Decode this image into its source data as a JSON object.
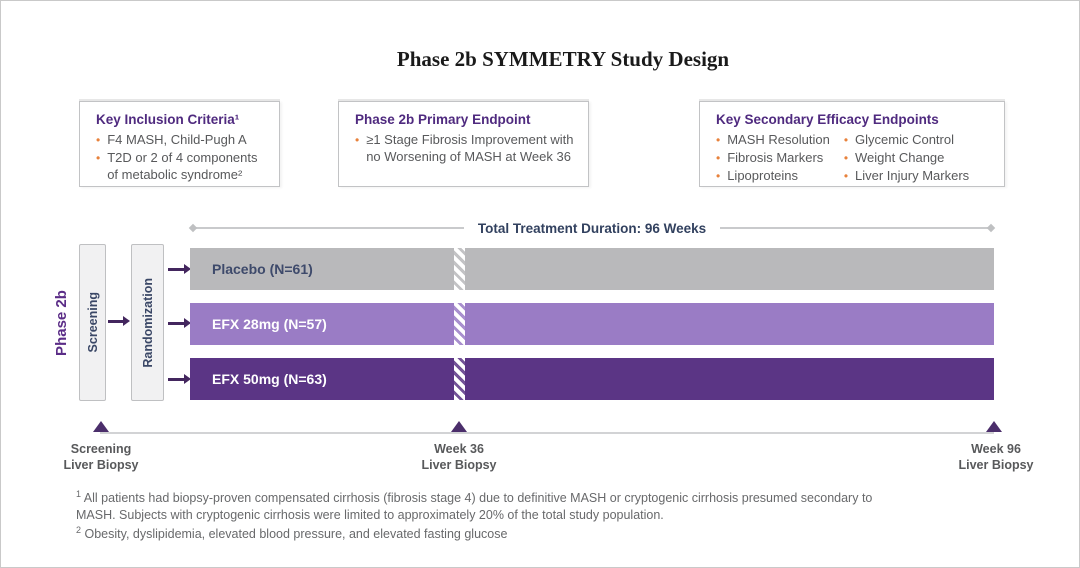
{
  "title": "Phase 2b SYMMETRY Study Design",
  "info_boxes": [
    {
      "heading": "Key Inclusion Criteria¹",
      "bullets": [
        "F4 MASH, Child-Pugh A",
        "T2D or 2 of 4 components of metabolic syndrome²"
      ]
    },
    {
      "heading": "Phase 2b Primary Endpoint",
      "bullets": [
        "≥1 Stage Fibrosis Improvement with no Worsening of MASH at Week 36"
      ]
    },
    {
      "heading": "Key Secondary Efficacy Endpoints",
      "bullets_col1": [
        "MASH Resolution",
        "Fibrosis Markers",
        "Lipoproteins"
      ],
      "bullets_col2": [
        "Glycemic Control",
        "Weight Change",
        "Liver Injury Markers"
      ]
    }
  ],
  "diagram": {
    "phase_label": "Phase 2b",
    "screening_label": "Screening",
    "randomization_label": "Randomization",
    "duration_label": "Total Treatment Duration: 96 Weeks",
    "arms": [
      {
        "label": "Placebo (N=61)",
        "color": "#b9b9bb",
        "text_color": "#3e4a6b"
      },
      {
        "label": "EFX 28mg (N=57)",
        "color": "#9a7cc5",
        "text_color": "#ffffff"
      },
      {
        "label": "EFX 50mg (N=63)",
        "color": "#5b3585",
        "text_color": "#ffffff"
      }
    ],
    "timeline_markers": [
      {
        "line1": "Screening",
        "line2": "Liver Biopsy"
      },
      {
        "line1": "Week 36",
        "line2": "Liver Biopsy"
      },
      {
        "line1": "Week 96",
        "line2": "Liver Biopsy"
      }
    ]
  },
  "footnotes": [
    {
      "marker": "1",
      "text": " All patients had biopsy-proven compensated cirrhosis (fibrosis stage 4) due to definitive MASH or cryptogenic cirrhosis presumed secondary to MASH. Subjects with cryptogenic cirrhosis were limited to approximately 20% of the total study population."
    },
    {
      "marker": "2",
      "text": " Obesity, dyslipidemia, elevated blood pressure, and elevated fasting glucose"
    }
  ],
  "icons": {
    "arm_arrow": "arrow-right",
    "biopsy_marker": "triangle-up",
    "duration_endpoint": "diamond"
  },
  "colors": {
    "heading_purple": "#4f2a7f",
    "phase_purple": "#5b2d87",
    "accent_orange": "#e8823c",
    "navy_text": "#32415f",
    "body_gray": "#58595b",
    "footnote_gray": "#68696b",
    "arrow_purple": "#43265e",
    "marker_purple": "#4b2e6b"
  }
}
